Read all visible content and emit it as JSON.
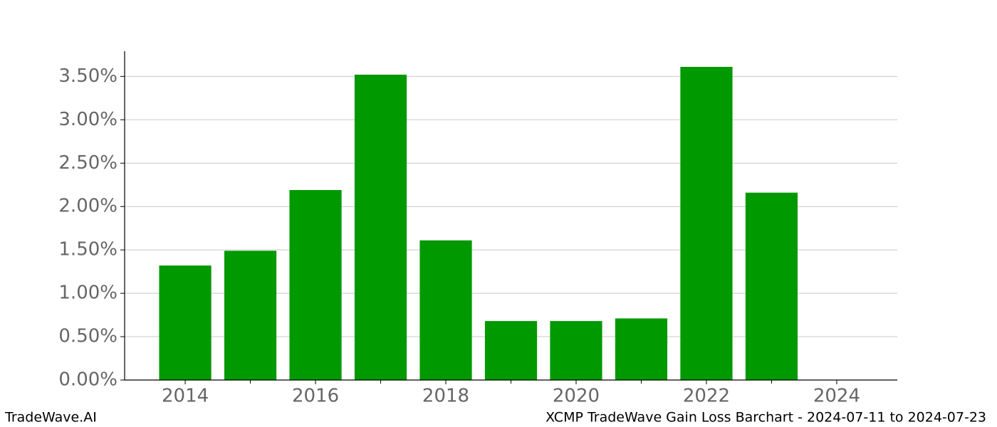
{
  "chart_data": {
    "type": "bar",
    "x": [
      2014,
      2015,
      2016,
      2017,
      2018,
      2019,
      2020,
      2021,
      2022,
      2023
    ],
    "values": [
      1.32,
      1.49,
      2.19,
      3.52,
      1.61,
      0.68,
      0.68,
      0.71,
      3.61,
      2.16
    ],
    "color": "#009900",
    "xlim": [
      2013.07,
      2024.93
    ],
    "xticks": [
      2014,
      2016,
      2018,
      2020,
      2022,
      2024
    ],
    "xminor_ticks": [
      2015,
      2017,
      2019,
      2021,
      2023
    ],
    "ylim": [
      0,
      3.79
    ],
    "yticks": [
      {
        "value": 0,
        "label": "0.00%"
      },
      {
        "value": 0.5,
        "label": "0.50%"
      },
      {
        "value": 1,
        "label": "1.00%"
      },
      {
        "value": 1.5,
        "label": "1.50%"
      },
      {
        "value": 2,
        "label": "2.00%"
      },
      {
        "value": 2.5,
        "label": "2.50%"
      },
      {
        "value": 3,
        "label": "3.00%"
      },
      {
        "value": 3.5,
        "label": "3.50%"
      }
    ],
    "grid": true,
    "footer_left": "TradeWave.AI",
    "footer_right": "XCMP TradeWave Gain Loss Barchart - 2024-07-11 to 2024-07-23"
  }
}
